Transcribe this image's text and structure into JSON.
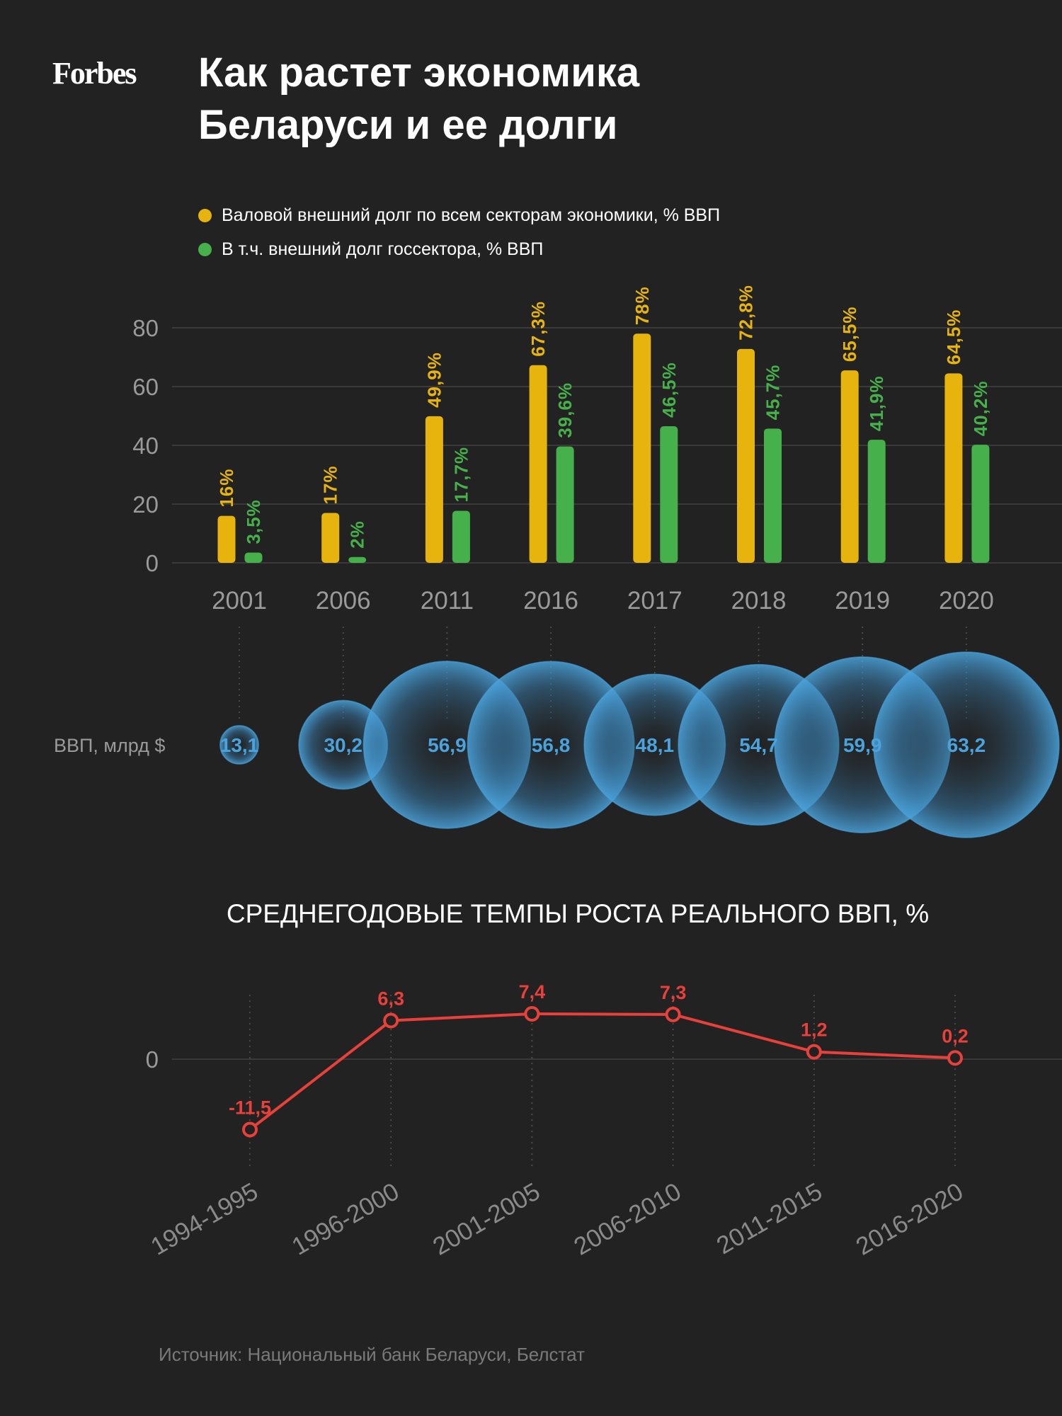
{
  "logo": "Forbes",
  "title": "Как растет экономика\nБеларуси и ее долги",
  "colors": {
    "background": "#222222",
    "gross_debt": "#e6b40c",
    "public_debt": "#46b04a",
    "gdp_bubble": "#4aa3dc",
    "growth_line": "#e8403a",
    "axis_text": "#9a9a9a",
    "grid": "#3a3a3a"
  },
  "legend": [
    {
      "label": "Валовой внешний долг по всем секторам экономики, % ВВП",
      "color": "#e6b40c"
    },
    {
      "label": "В т.ч. внешний долг госсектора, % ВВП",
      "color": "#46b04a"
    }
  ],
  "source": "Источник: Национальный банк Беларуси, Белстат",
  "chart_data": [
    {
      "type": "bar",
      "categories": [
        "2001",
        "2006",
        "2011",
        "2016",
        "2017",
        "2018",
        "2019",
        "2020"
      ],
      "series": [
        {
          "name": "Валовой внешний долг по всем секторам экономики, % ВВП",
          "values": [
            16,
            17,
            49.9,
            67.3,
            78,
            72.8,
            65.5,
            64.5
          ],
          "labels": [
            "16%",
            "17%",
            "49,9%",
            "67,3%",
            "78%",
            "72,8%",
            "65,5%",
            "64,5%"
          ]
        },
        {
          "name": "В т.ч. внешний долг госсектора, % ВВП",
          "values": [
            3.5,
            2,
            17.7,
            39.6,
            46.5,
            45.7,
            41.9,
            40.2
          ],
          "labels": [
            "3,5%",
            "2%",
            "17,7%",
            "39,6%",
            "46,5%",
            "45,7%",
            "41,9%",
            "40,2%"
          ]
        }
      ],
      "yticks": [
        "0",
        "20",
        "40",
        "60",
        "80"
      ],
      "ylim": [
        0,
        80
      ],
      "grid": true,
      "legend": "top-left"
    },
    {
      "type": "scatter",
      "row_label": "ВВП, млрд $",
      "categories": [
        "2001",
        "2006",
        "2011",
        "2016",
        "2017",
        "2018",
        "2019",
        "2020"
      ],
      "values": [
        13.1,
        30.2,
        56.9,
        56.8,
        48.1,
        54.7,
        59.9,
        63.2
      ],
      "labels": [
        "13,1",
        "30,2",
        "56,9",
        "56,8",
        "48,1",
        "54,7",
        "59,9",
        "63,2"
      ]
    },
    {
      "type": "line",
      "title": "СРЕДНЕГОДОВЫЕ ТЕМПЫ РОСТА РЕАЛЬНОГО ВВП, %",
      "categories": [
        "1994-1995",
        "1996-2000",
        "2001-2005",
        "2006-2010",
        "2011-2015",
        "2016-2020"
      ],
      "values": [
        -11.5,
        6.3,
        7.4,
        7.3,
        1.2,
        0.2
      ],
      "labels": [
        "-11,5",
        "6,3",
        "7,4",
        "7,3",
        "1,2",
        "0,2"
      ],
      "yticks": [
        "0"
      ],
      "grid": true
    }
  ]
}
